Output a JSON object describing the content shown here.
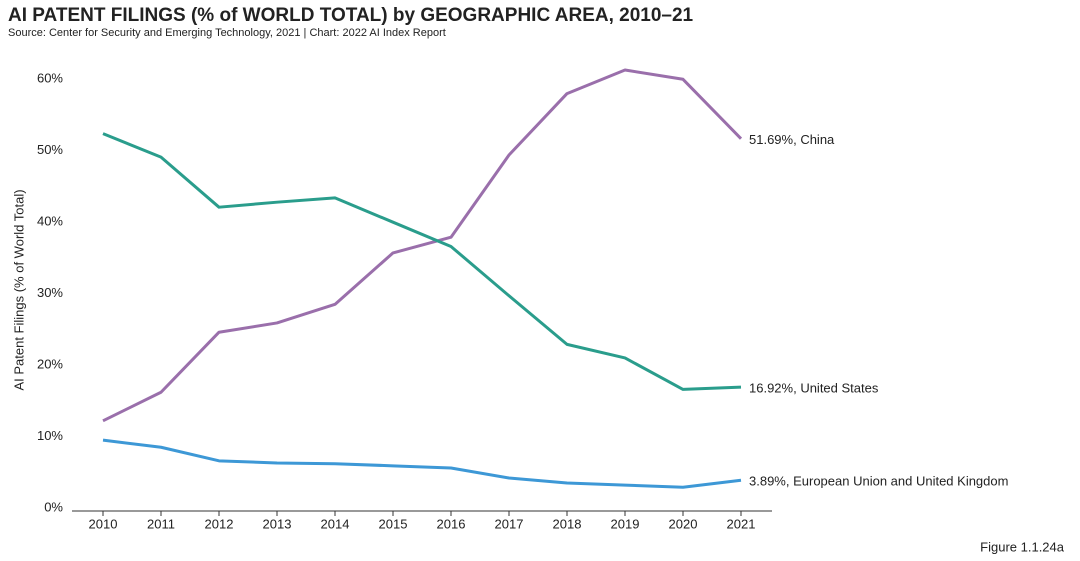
{
  "chart_data": {
    "type": "line",
    "title": "AI PATENT FILINGS (% of WORLD TOTAL) by GEOGRAPHIC AREA, 2010–21",
    "subtitle": "Source: Center for Security and Emerging Technology, 2021 | Chart: 2022 AI Index Report",
    "y_label": "AI Patent Filings (% of World Total)",
    "figure_label": "Figure 1.1.24a",
    "categories": [
      "2010",
      "2011",
      "2012",
      "2013",
      "2014",
      "2015",
      "2016",
      "2017",
      "2018",
      "2019",
      "2020",
      "2021"
    ],
    "ylim": [
      0,
      62
    ],
    "yticks": [
      {
        "value": 0,
        "label": "0%"
      },
      {
        "value": 10,
        "label": "10%"
      },
      {
        "value": 20,
        "label": "20%"
      },
      {
        "value": 30,
        "label": "30%"
      },
      {
        "value": 40,
        "label": "40%"
      },
      {
        "value": 50,
        "label": "50%"
      },
      {
        "value": 60,
        "label": "60%"
      }
    ],
    "series": [
      {
        "color": "#9a6fab",
        "values": [
          12.2,
          16.2,
          24.6,
          25.9,
          28.5,
          35.7,
          37.9,
          49.4,
          58.0,
          61.3,
          60.0,
          51.69
        ],
        "value_labels": [
          null,
          null,
          null,
          null,
          null,
          null,
          null,
          null,
          null,
          null,
          null,
          "51.69%, China"
        ]
      },
      {
        "color": "#2a9d8c",
        "values": [
          52.4,
          49.1,
          42.1,
          42.8,
          43.4,
          40.0,
          36.6,
          29.7,
          22.9,
          21.0,
          16.6,
          16.92
        ],
        "value_labels": [
          null,
          null,
          null,
          null,
          null,
          null,
          null,
          null,
          null,
          null,
          null,
          "16.92%, United States"
        ]
      },
      {
        "color": "#3d98d6",
        "values": [
          9.5,
          8.5,
          6.6,
          6.3,
          6.2,
          5.9,
          5.6,
          4.2,
          3.5,
          3.2,
          2.9,
          3.89
        ],
        "value_labels": [
          null,
          null,
          null,
          null,
          null,
          null,
          null,
          null,
          null,
          null,
          null,
          "3.89%, European Union and United Kingdom"
        ]
      }
    ]
  }
}
